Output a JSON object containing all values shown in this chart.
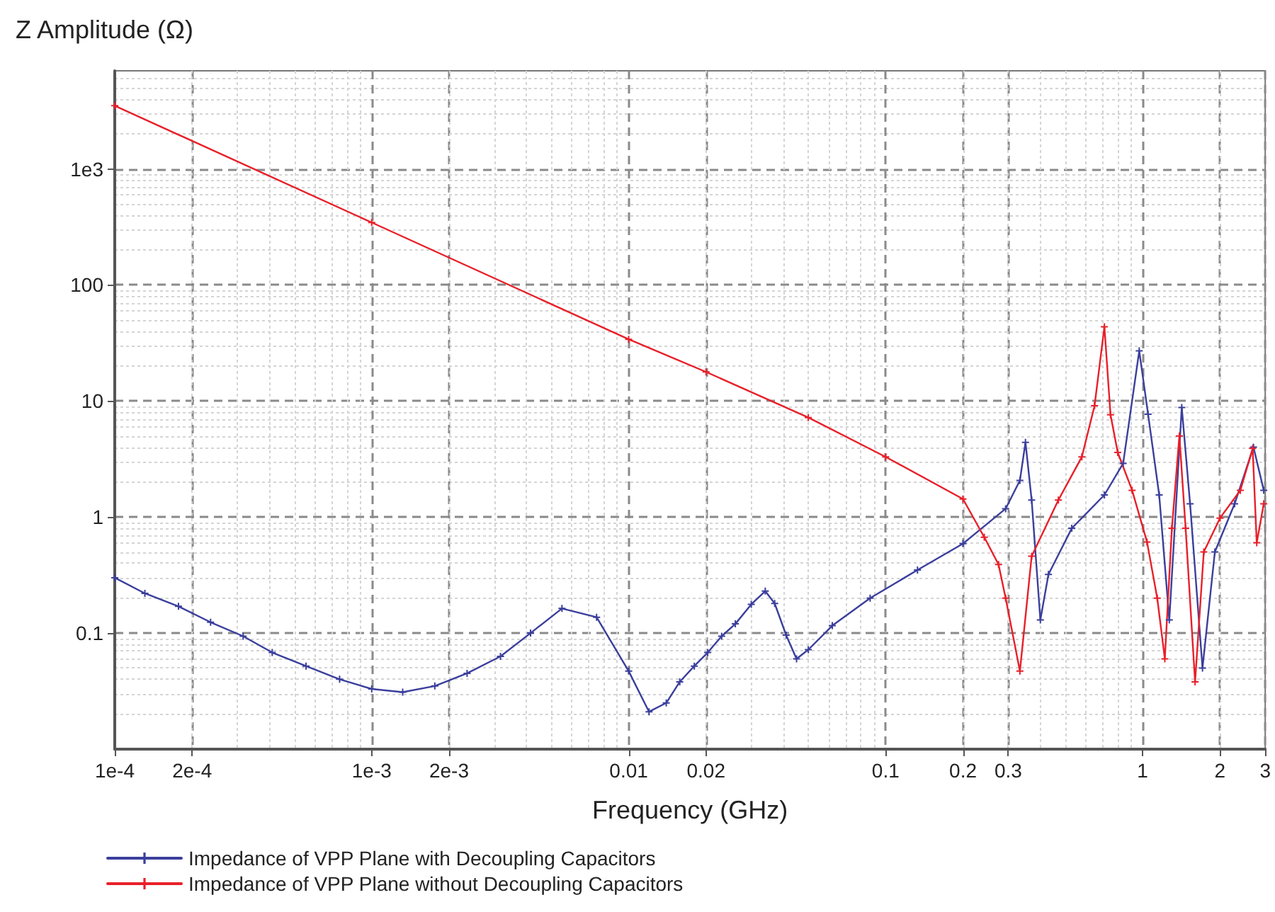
{
  "chart_data": {
    "type": "line",
    "ylabel": "Z Amplitude (Ω)",
    "xlabel": "Frequency (GHz)",
    "log": "xy",
    "grid": true,
    "legend": "bottom",
    "marker": "cross",
    "line_style": "solid",
    "xlim": [
      0.0001,
      3
    ],
    "ylim": [
      0.01,
      7000
    ],
    "xticks": [
      {
        "value": 0.0001,
        "label": "1e-4"
      },
      {
        "value": 0.0002,
        "label": "2e-4"
      },
      {
        "value": 0.001,
        "label": "1e-3"
      },
      {
        "value": 0.002,
        "label": "2e-3"
      },
      0.01,
      0.02,
      0.1,
      0.2,
      0.3,
      1,
      2,
      3
    ],
    "yticks": [
      0.1,
      1,
      10,
      100,
      {
        "value": 1000,
        "label": "1e3"
      }
    ],
    "series": [
      {
        "name": "Impedance of VPP Plane with Decoupling Capacitors",
        "color": "#3b3f9c",
        "x": [
          0.0001,
          0.000131,
          0.000177,
          0.000236,
          0.000316,
          0.00041,
          0.000555,
          0.00075,
          0.001,
          0.00132,
          0.00176,
          0.00235,
          0.00317,
          0.00415,
          0.0055,
          0.0075,
          0.01,
          0.012,
          0.014,
          0.0158,
          0.018,
          0.0203,
          0.023,
          0.026,
          0.03,
          0.034,
          0.037,
          0.041,
          0.045,
          0.05,
          0.062,
          0.087,
          0.133,
          0.2,
          0.293,
          0.333,
          0.35,
          0.37,
          0.4,
          0.43,
          0.53,
          0.71,
          0.84,
          0.97,
          1.05,
          1.16,
          1.27,
          1.42,
          1.53,
          1.71,
          1.91,
          2.28,
          2.7,
          2.96
        ],
        "values": [
          0.3,
          0.22,
          0.17,
          0.124,
          0.094,
          0.068,
          0.052,
          0.04,
          0.033,
          0.031,
          0.035,
          0.045,
          0.063,
          0.1,
          0.163,
          0.137,
          0.047,
          0.021,
          0.025,
          0.038,
          0.052,
          0.068,
          0.094,
          0.12,
          0.177,
          0.23,
          0.18,
          0.096,
          0.06,
          0.072,
          0.116,
          0.2,
          0.35,
          0.59,
          1.18,
          2.07,
          4.4,
          1.4,
          0.13,
          0.32,
          0.8,
          1.55,
          2.9,
          27,
          7.7,
          1.55,
          0.13,
          8.8,
          1.3,
          0.05,
          0.5,
          1.3,
          4,
          1.7
        ]
      },
      {
        "name": "Impedance of VPP Plane without Decoupling Capacitors",
        "color": "#e8202a",
        "x": [
          0.0001,
          0.001,
          0.01,
          0.02,
          0.05,
          0.1,
          0.2,
          0.242,
          0.275,
          0.293,
          0.333,
          0.37,
          0.47,
          0.58,
          0.65,
          0.71,
          0.75,
          0.8,
          0.91,
          1.04,
          1.14,
          1.22,
          1.3,
          1.39,
          1.47,
          1.6,
          1.73,
          2,
          2.4,
          2.68,
          2.78,
          2.96
        ],
        "values": [
          3500,
          345,
          34,
          17.8,
          7.2,
          3.3,
          1.43,
          0.67,
          0.39,
          0.2,
          0.047,
          0.46,
          1.4,
          3.3,
          9.1,
          43.6,
          7.6,
          3.6,
          1.7,
          0.61,
          0.2,
          0.06,
          0.8,
          5,
          0.8,
          0.038,
          0.5,
          0.98,
          1.7,
          3.9,
          0.6,
          1.3
        ]
      }
    ]
  }
}
